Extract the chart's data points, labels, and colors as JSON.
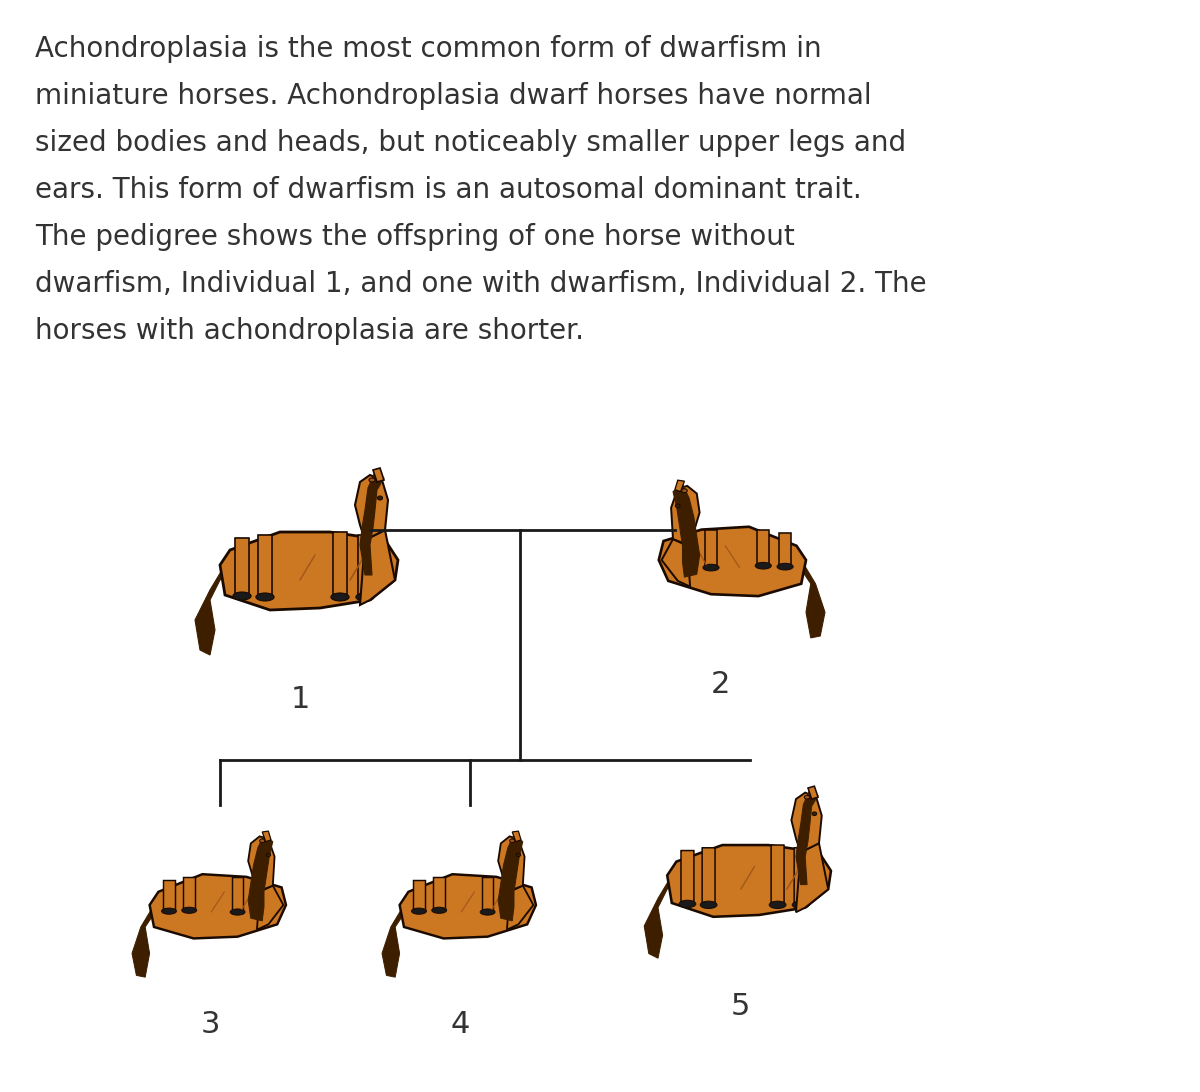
{
  "background_color": "#ffffff",
  "text_color": "#333333",
  "paragraph_lines": [
    "Achondroplasia is the most common form of dwarfism in",
    "miniature horses. Achondroplasia dwarf horses have normal",
    "sized bodies and heads, but noticeably smaller upper legs and",
    "ears. This form of dwarfism is an autosomal dominant trait.",
    "The pedigree shows the offspring of one horse without",
    "dwarfism, Individual 1, and one with dwarfism, Individual 2. The",
    "horses with achondroplasia are shorter."
  ],
  "paragraph_fontsize": 20,
  "label_fontsize": 22,
  "line_color": "#1a1a1a",
  "line_width": 2.0,
  "horse_body_color": "#CC7722",
  "horse_dark_color": "#3d1f00",
  "horse_outline_color": "#1a0a00",
  "horse_shadow_color": "#a0551a"
}
